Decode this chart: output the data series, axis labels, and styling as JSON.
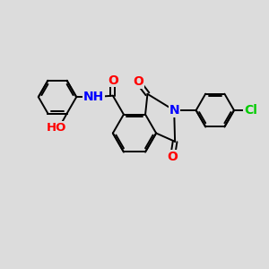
{
  "bg_color": "#dcdcdc",
  "bond_color": "#000000",
  "bond_width": 1.4,
  "atom_colors": {
    "O": "#ff0000",
    "N": "#0000ff",
    "Cl": "#00cc00",
    "C": "#000000",
    "H": "#000000"
  },
  "font_size": 9.5
}
